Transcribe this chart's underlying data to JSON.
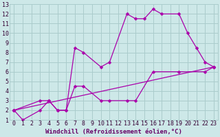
{
  "xlabel": "Windchill (Refroidissement éolien,°C)",
  "bg_color": "#cde8e8",
  "grid_color": "#aacccc",
  "line_color": "#aa00aa",
  "xlim": [
    -0.5,
    23.5
  ],
  "ylim": [
    1,
    13
  ],
  "xticks": [
    0,
    1,
    2,
    3,
    4,
    5,
    6,
    7,
    8,
    9,
    10,
    11,
    12,
    13,
    14,
    15,
    16,
    17,
    18,
    19,
    20,
    21,
    22,
    23
  ],
  "yticks": [
    1,
    2,
    3,
    4,
    5,
    6,
    7,
    8,
    9,
    10,
    11,
    12,
    13
  ],
  "line1_x": [
    0,
    1,
    3,
    4,
    5,
    6,
    7,
    8,
    10,
    11,
    13,
    14,
    15,
    16,
    17,
    19,
    20,
    21,
    22,
    23
  ],
  "line1_y": [
    2,
    1,
    2,
    3,
    2,
    2,
    8.5,
    8.0,
    6.5,
    7.0,
    12,
    11.5,
    11.5,
    12.5,
    12,
    12,
    10,
    8.5,
    7,
    6.5
  ],
  "line2_x": [
    0,
    3,
    4,
    5,
    6,
    7,
    8,
    10,
    11,
    13,
    14,
    16,
    19,
    22,
    23
  ],
  "line2_y": [
    2,
    3.0,
    3.0,
    2.0,
    2.0,
    4.5,
    4.5,
    3.0,
    3.0,
    3.0,
    3.0,
    6.0,
    6.0,
    6.0,
    6.5
  ],
  "line3_x": [
    0,
    23
  ],
  "line3_y": [
    2,
    6.5
  ],
  "xlabel_color": "#660066",
  "xlabel_fontsize": 6.5,
  "tick_fontsize": 6
}
